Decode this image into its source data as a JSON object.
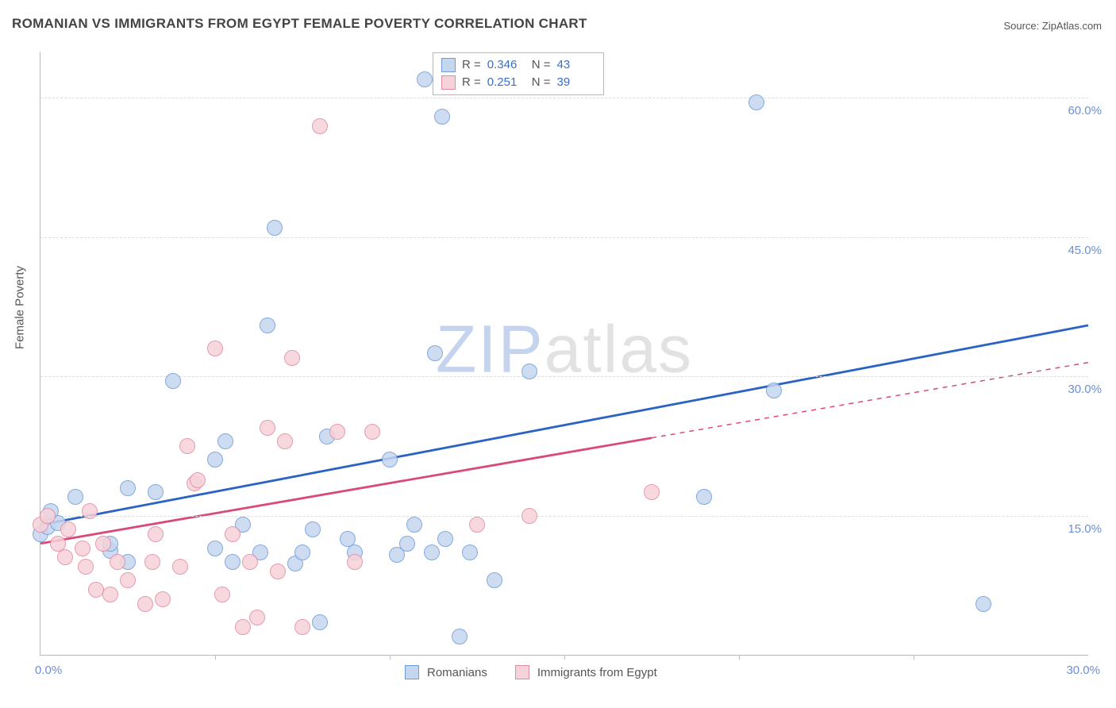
{
  "title": "ROMANIAN VS IMMIGRANTS FROM EGYPT FEMALE POVERTY CORRELATION CHART",
  "source": "Source: ZipAtlas.com",
  "watermark": {
    "part1": "ZIP",
    "part2": "atlas"
  },
  "chart": {
    "type": "scatter",
    "background_color": "#ffffff",
    "grid_color": "#dddddd",
    "axis_color": "#bbbbbb",
    "xlim": [
      0,
      30
    ],
    "ylim": [
      0,
      65
    ],
    "y_ticks": [
      {
        "v": 15,
        "label": "15.0%"
      },
      {
        "v": 30,
        "label": "30.0%"
      },
      {
        "v": 45,
        "label": "45.0%"
      },
      {
        "v": 60,
        "label": "60.0%"
      }
    ],
    "x_ticks": [
      5,
      10,
      15,
      20,
      25
    ],
    "x_min_label": "0.0%",
    "x_max_label": "30.0%",
    "y_axis_title": "Female Poverty",
    "tick_label_color": "#6a8fd8",
    "axis_title_color": "#555555",
    "label_fontsize": 15,
    "title_fontsize": 17,
    "marker_radius": 9,
    "marker_stroke_width": 1.5,
    "trend_width": 2.8
  },
  "series": [
    {
      "name": "Romanians",
      "fill": "#c5d6ef",
      "stroke": "#6f9bd8",
      "trend_color": "#2a63c4",
      "R": "0.346",
      "N": "43",
      "trend": {
        "x1": 0,
        "y1": 14.0,
        "x2": 30,
        "y2": 35.5,
        "solid_to_x": 30
      },
      "points": [
        [
          0.0,
          13.0
        ],
        [
          0.2,
          13.8
        ],
        [
          0.5,
          14.2
        ],
        [
          0.3,
          15.5
        ],
        [
          1.0,
          17.0
        ],
        [
          2.0,
          11.2
        ],
        [
          2.0,
          12.0
        ],
        [
          2.5,
          10.0
        ],
        [
          2.5,
          18.0
        ],
        [
          3.3,
          17.5
        ],
        [
          3.8,
          29.5
        ],
        [
          5.0,
          21.0
        ],
        [
          5.0,
          11.5
        ],
        [
          5.3,
          23.0
        ],
        [
          5.5,
          10.0
        ],
        [
          5.8,
          14.0
        ],
        [
          6.3,
          11.0
        ],
        [
          6.5,
          35.5
        ],
        [
          6.7,
          46.0
        ],
        [
          7.3,
          9.8
        ],
        [
          7.5,
          11.0
        ],
        [
          7.8,
          13.5
        ],
        [
          8.0,
          3.5
        ],
        [
          8.2,
          23.5
        ],
        [
          8.8,
          12.5
        ],
        [
          9.0,
          11.0
        ],
        [
          10.0,
          21.0
        ],
        [
          10.2,
          10.8
        ],
        [
          10.5,
          12.0
        ],
        [
          10.7,
          14.0
        ],
        [
          11.0,
          62.0
        ],
        [
          11.2,
          11.0
        ],
        [
          11.3,
          32.5
        ],
        [
          11.5,
          58.0
        ],
        [
          12.0,
          2.0
        ],
        [
          12.3,
          11.0
        ],
        [
          13.0,
          8.0
        ],
        [
          14.0,
          30.5
        ],
        [
          19.0,
          17.0
        ],
        [
          20.5,
          59.5
        ],
        [
          21.0,
          28.5
        ],
        [
          27.0,
          5.5
        ],
        [
          11.6,
          12.5
        ]
      ]
    },
    {
      "name": "Immigrants from Egypt",
      "fill": "#f6d2da",
      "stroke": "#e28aa0",
      "trend_color": "#d84a78",
      "R": "0.251",
      "N": "39",
      "trend": {
        "x1": 0,
        "y1": 12.0,
        "x2": 30,
        "y2": 31.5,
        "solid_to_x": 17.5
      },
      "points": [
        [
          0.0,
          14.0
        ],
        [
          0.2,
          15.0
        ],
        [
          0.5,
          12.0
        ],
        [
          0.7,
          10.5
        ],
        [
          0.8,
          13.5
        ],
        [
          1.2,
          11.5
        ],
        [
          1.3,
          9.5
        ],
        [
          1.4,
          15.5
        ],
        [
          1.6,
          7.0
        ],
        [
          1.8,
          12.0
        ],
        [
          2.0,
          6.5
        ],
        [
          2.2,
          10.0
        ],
        [
          2.5,
          8.0
        ],
        [
          3.0,
          5.5
        ],
        [
          3.2,
          10.0
        ],
        [
          3.3,
          13.0
        ],
        [
          3.5,
          6.0
        ],
        [
          4.0,
          9.5
        ],
        [
          4.2,
          22.5
        ],
        [
          4.4,
          18.5
        ],
        [
          4.5,
          18.8
        ],
        [
          5.0,
          33.0
        ],
        [
          5.2,
          6.5
        ],
        [
          5.5,
          13.0
        ],
        [
          5.8,
          3.0
        ],
        [
          6.0,
          10.0
        ],
        [
          6.2,
          4.0
        ],
        [
          6.5,
          24.5
        ],
        [
          6.8,
          9.0
        ],
        [
          7.0,
          23.0
        ],
        [
          7.2,
          32.0
        ],
        [
          7.5,
          3.0
        ],
        [
          8.0,
          57.0
        ],
        [
          8.5,
          24.0
        ],
        [
          9.0,
          10.0
        ],
        [
          9.5,
          24.0
        ],
        [
          12.5,
          14.0
        ],
        [
          14.0,
          15.0
        ],
        [
          17.5,
          17.5
        ]
      ]
    }
  ],
  "legend_top": {
    "R_label": "R =",
    "N_label": "N ="
  },
  "legend_bottom": {
    "items": [
      "Romanians",
      "Immigrants from Egypt"
    ]
  }
}
